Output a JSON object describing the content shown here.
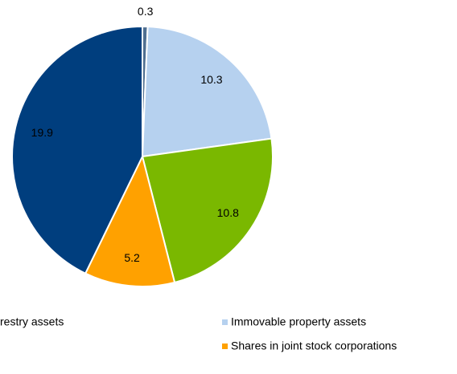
{
  "chart_data": {
    "type": "pie",
    "categories": [
      "restry assets",
      "Immovable property assets",
      null,
      "Shares in joint stock corporations",
      null
    ],
    "values": [
      0.3,
      10.3,
      10.8,
      5.2,
      19.9
    ],
    "colors": [
      "#4f6f91",
      "#b6d1ef",
      "#7ab800",
      "#ffa100",
      "#003e7e"
    ]
  }
}
